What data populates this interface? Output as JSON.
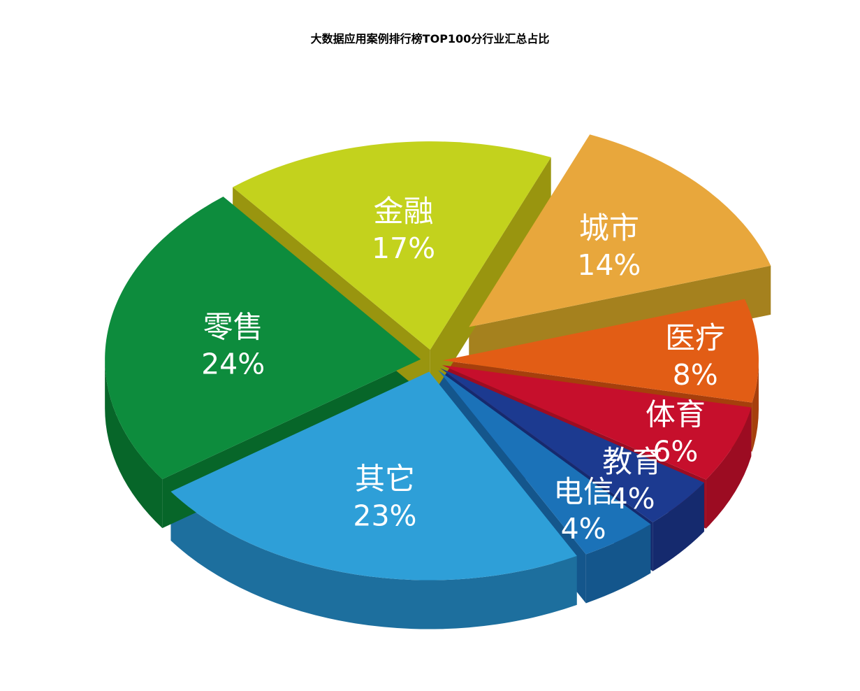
{
  "chart_data": {
    "type": "pie",
    "style": "3d-exploded",
    "title": "大数据应用案例排行榜TOP100分行业汇总占比",
    "unit": "%",
    "direction": "clockwise",
    "start_angle_deg": 22.5,
    "legend_position": "none",
    "slices": [
      {
        "label": "城市",
        "value": 14,
        "color": "#E8A73C",
        "side_color": "#A5811E",
        "explode": 72
      },
      {
        "label": "医疗",
        "value": 8,
        "color": "#E25D15",
        "side_color": "#A63F0C",
        "explode": 16
      },
      {
        "label": "体育",
        "value": 6,
        "color": "#C60F2C",
        "side_color": "#9C0C22",
        "explode": 16
      },
      {
        "label": "教育",
        "value": 4,
        "color": "#1C3A90",
        "side_color": "#152A6E",
        "explode": 16
      },
      {
        "label": "电信",
        "value": 4,
        "color": "#1B72B8",
        "side_color": "#14568C",
        "explode": 16
      },
      {
        "label": "其它",
        "value": 23,
        "color": "#2E9FD8",
        "side_color": "#1D6F9E",
        "explode": 16
      },
      {
        "label": "零售",
        "value": 24,
        "color": "#0D8C3D",
        "side_color": "#076629",
        "explode": 16
      },
      {
        "label": "金融",
        "value": 17,
        "color": "#C3D21D",
        "side_color": "#99950F",
        "explode": 16
      }
    ]
  }
}
